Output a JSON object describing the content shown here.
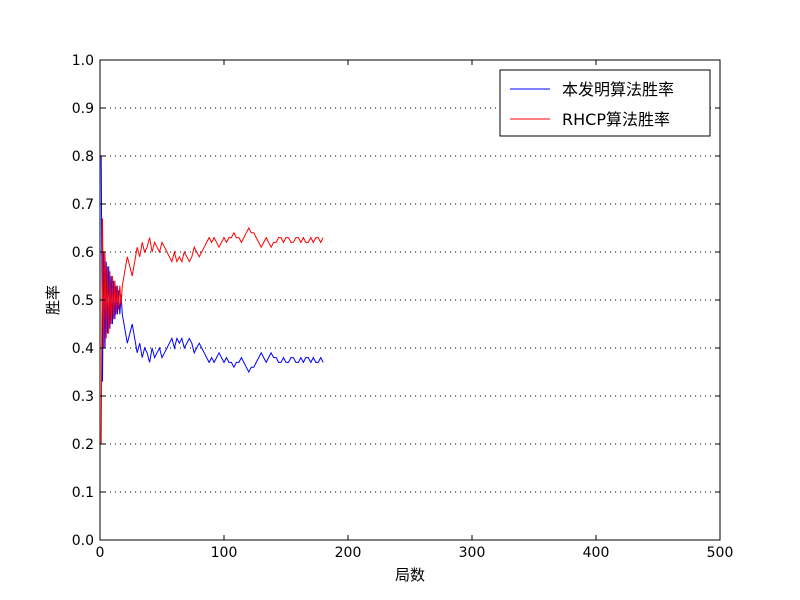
{
  "chart_data": {
    "type": "line",
    "xlabel": "局数",
    "ylabel": "胜率",
    "xlim": [
      0,
      500
    ],
    "ylim": [
      0,
      1
    ],
    "xticks": [
      "0",
      "100",
      "200",
      "300",
      "400",
      "500"
    ],
    "yticks": [
      "0.0",
      "0.1",
      "0.2",
      "0.3",
      "0.4",
      "0.5",
      "0.6",
      "0.7",
      "0.8",
      "0.9",
      "1.0"
    ],
    "grid": "horizontal-dotted",
    "legend_position": "top-right",
    "series": [
      {
        "name": "本发明算法胜率",
        "color": "#0000ff",
        "x": [
          1,
          2,
          3,
          4,
          5,
          6,
          7,
          8,
          9,
          10,
          11,
          12,
          13,
          14,
          15,
          16,
          17,
          18,
          20,
          22,
          24,
          26,
          28,
          30,
          32,
          34,
          36,
          38,
          40,
          42,
          44,
          46,
          48,
          50,
          52,
          54,
          56,
          58,
          60,
          62,
          64,
          66,
          68,
          70,
          72,
          74,
          76,
          78,
          80,
          82,
          84,
          86,
          88,
          90,
          92,
          94,
          96,
          98,
          100,
          102,
          104,
          106,
          108,
          110,
          112,
          114,
          116,
          118,
          120,
          122,
          124,
          126,
          128,
          130,
          132,
          134,
          136,
          138,
          140,
          142,
          144,
          146,
          148,
          150,
          152,
          154,
          156,
          158,
          160,
          162,
          164,
          166,
          168,
          170,
          172,
          174,
          176,
          178,
          180
        ],
        "values": [
          0.8,
          0.33,
          0.6,
          0.4,
          0.58,
          0.43,
          0.57,
          0.44,
          0.55,
          0.45,
          0.54,
          0.46,
          0.53,
          0.47,
          0.52,
          0.47,
          0.51,
          0.47,
          0.44,
          0.41,
          0.43,
          0.45,
          0.42,
          0.39,
          0.41,
          0.38,
          0.4,
          0.39,
          0.37,
          0.4,
          0.38,
          0.39,
          0.4,
          0.38,
          0.39,
          0.4,
          0.41,
          0.42,
          0.4,
          0.42,
          0.41,
          0.42,
          0.4,
          0.41,
          0.42,
          0.41,
          0.39,
          0.4,
          0.41,
          0.4,
          0.39,
          0.38,
          0.37,
          0.38,
          0.37,
          0.38,
          0.39,
          0.38,
          0.37,
          0.38,
          0.37,
          0.37,
          0.36,
          0.37,
          0.37,
          0.38,
          0.37,
          0.36,
          0.35,
          0.36,
          0.36,
          0.37,
          0.38,
          0.39,
          0.38,
          0.37,
          0.38,
          0.39,
          0.38,
          0.38,
          0.37,
          0.37,
          0.38,
          0.37,
          0.37,
          0.38,
          0.38,
          0.37,
          0.37,
          0.38,
          0.37,
          0.38,
          0.38,
          0.37,
          0.38,
          0.37,
          0.37,
          0.38,
          0.37
        ]
      },
      {
        "name": "RHCP算法胜率",
        "color": "#ff0000",
        "x": [
          1,
          2,
          3,
          4,
          5,
          6,
          7,
          8,
          9,
          10,
          11,
          12,
          13,
          14,
          15,
          16,
          17,
          18,
          20,
          22,
          24,
          26,
          28,
          30,
          32,
          34,
          36,
          38,
          40,
          42,
          44,
          46,
          48,
          50,
          52,
          54,
          56,
          58,
          60,
          62,
          64,
          66,
          68,
          70,
          72,
          74,
          76,
          78,
          80,
          82,
          84,
          86,
          88,
          90,
          92,
          94,
          96,
          98,
          100,
          102,
          104,
          106,
          108,
          110,
          112,
          114,
          116,
          118,
          120,
          122,
          124,
          126,
          128,
          130,
          132,
          134,
          136,
          138,
          140,
          142,
          144,
          146,
          148,
          150,
          152,
          154,
          156,
          158,
          160,
          162,
          164,
          166,
          168,
          170,
          172,
          174,
          176,
          178,
          180
        ],
        "values": [
          0.2,
          0.67,
          0.4,
          0.6,
          0.42,
          0.57,
          0.43,
          0.56,
          0.45,
          0.55,
          0.46,
          0.54,
          0.47,
          0.53,
          0.48,
          0.53,
          0.49,
          0.53,
          0.56,
          0.59,
          0.57,
          0.55,
          0.58,
          0.61,
          0.59,
          0.62,
          0.6,
          0.61,
          0.63,
          0.6,
          0.62,
          0.61,
          0.6,
          0.62,
          0.61,
          0.6,
          0.59,
          0.58,
          0.6,
          0.58,
          0.59,
          0.58,
          0.6,
          0.59,
          0.58,
          0.59,
          0.61,
          0.6,
          0.59,
          0.6,
          0.61,
          0.62,
          0.63,
          0.62,
          0.63,
          0.62,
          0.61,
          0.62,
          0.63,
          0.62,
          0.63,
          0.63,
          0.64,
          0.63,
          0.63,
          0.62,
          0.63,
          0.64,
          0.65,
          0.64,
          0.64,
          0.63,
          0.62,
          0.61,
          0.62,
          0.63,
          0.62,
          0.61,
          0.62,
          0.62,
          0.63,
          0.63,
          0.62,
          0.63,
          0.63,
          0.62,
          0.62,
          0.63,
          0.63,
          0.62,
          0.63,
          0.62,
          0.62,
          0.63,
          0.62,
          0.63,
          0.63,
          0.62,
          0.63
        ]
      }
    ]
  }
}
